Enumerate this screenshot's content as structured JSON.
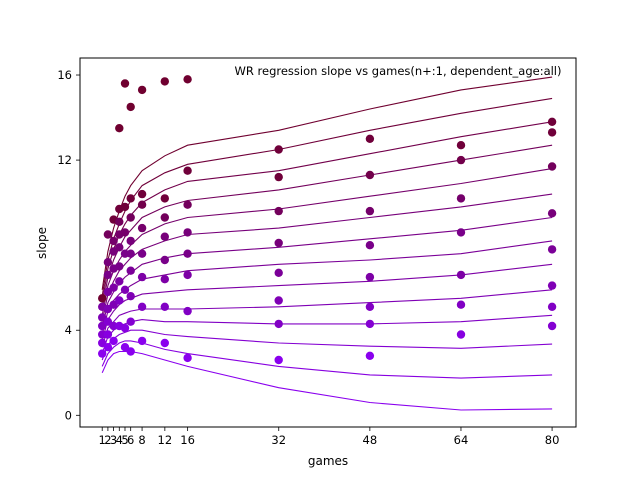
{
  "chart_data": {
    "type": "line",
    "title": "WR regression slope vs games(n+:1, dependent_age:all)",
    "xlabel": "games",
    "ylabel": "slope",
    "xlim": [
      -2.9,
      84.2
    ],
    "ylim": [
      -0.55,
      16.8
    ],
    "xticks": [
      1,
      2,
      3,
      4,
      5,
      6,
      8,
      12,
      16,
      32,
      48,
      64,
      80
    ],
    "yticks": [
      0,
      4,
      12,
      16
    ],
    "grid": false,
    "legend": "none",
    "x": [
      1,
      2,
      3,
      4,
      5,
      6,
      8,
      12,
      16,
      32,
      48,
      64,
      80
    ],
    "colors": [
      "#8a00ee",
      "#8700e0",
      "#8400d2",
      "#8100c4",
      "#7f00b5",
      "#7d00a6",
      "#7b0098",
      "#790089",
      "#77007a",
      "#75006b",
      "#73005c",
      "#72004b",
      "#70003a",
      "#700030"
    ],
    "series": [
      {
        "values": [
          2.0,
          2.6,
          2.9,
          3.0,
          3.0,
          3.0,
          2.9,
          2.6,
          2.3,
          1.3,
          0.6,
          0.25,
          0.3
        ]
      },
      {
        "values": [
          2.3,
          2.9,
          3.2,
          3.4,
          3.5,
          3.5,
          3.4,
          3.1,
          2.9,
          2.3,
          1.9,
          1.75,
          1.9
        ]
      },
      {
        "values": [
          2.6,
          3.3,
          3.6,
          3.8,
          3.9,
          4.0,
          4.0,
          3.8,
          3.7,
          3.4,
          3.25,
          3.15,
          3.35
        ]
      },
      {
        "values": [
          2.9,
          3.7,
          4.0,
          4.2,
          4.3,
          4.4,
          4.5,
          4.4,
          4.4,
          4.3,
          4.3,
          4.4,
          4.7
        ]
      },
      {
        "values": [
          3.2,
          4.1,
          4.4,
          4.7,
          4.8,
          4.9,
          5.0,
          5.0,
          5.0,
          5.1,
          5.3,
          5.5,
          5.9
        ]
      },
      {
        "values": [
          3.5,
          4.5,
          4.9,
          5.2,
          5.4,
          5.5,
          5.7,
          5.8,
          5.9,
          6.1,
          6.3,
          6.6,
          7.1
        ]
      },
      {
        "values": [
          3.8,
          4.9,
          5.4,
          5.7,
          5.9,
          6.1,
          6.4,
          6.6,
          6.8,
          7.1,
          7.3,
          7.6,
          8.2
        ]
      },
      {
        "values": [
          4.1,
          5.3,
          5.8,
          6.2,
          6.5,
          6.7,
          7.1,
          7.4,
          7.6,
          7.9,
          8.3,
          8.7,
          9.3
        ]
      },
      {
        "values": [
          4.4,
          5.7,
          6.3,
          6.8,
          7.1,
          7.4,
          7.8,
          8.2,
          8.5,
          8.8,
          9.3,
          9.8,
          10.4
        ]
      },
      {
        "values": [
          4.7,
          6.1,
          6.8,
          7.3,
          7.7,
          8.0,
          8.5,
          9.0,
          9.3,
          9.7,
          10.3,
          10.9,
          11.6
        ]
      },
      {
        "values": [
          5.0,
          6.5,
          7.3,
          7.9,
          8.4,
          8.7,
          9.3,
          9.8,
          10.1,
          10.6,
          11.3,
          12.0,
          12.7
        ]
      },
      {
        "values": [
          5.3,
          6.9,
          7.8,
          8.5,
          9.0,
          9.4,
          10.0,
          10.6,
          11.0,
          11.5,
          12.3,
          13.1,
          13.8
        ]
      },
      {
        "values": [
          5.6,
          7.3,
          8.3,
          9.0,
          9.6,
          10.1,
          10.8,
          11.4,
          11.8,
          12.5,
          13.4,
          14.2,
          14.9
        ]
      },
      {
        "values": [
          5.9,
          7.7,
          8.8,
          9.6,
          10.3,
          10.8,
          11.5,
          12.2,
          12.7,
          13.4,
          14.4,
          15.3,
          15.9
        ]
      }
    ],
    "points": [
      {
        "x": 1,
        "y": 2.9,
        "c": 0
      },
      {
        "x": 1,
        "y": 3.4,
        "c": 1
      },
      {
        "x": 1,
        "y": 3.8,
        "c": 2
      },
      {
        "x": 1,
        "y": 4.2,
        "c": 3
      },
      {
        "x": 1,
        "y": 4.6,
        "c": 4
      },
      {
        "x": 1,
        "y": 5.1,
        "c": 5
      },
      {
        "x": 1,
        "y": 5.5,
        "c": 13
      },
      {
        "x": 2,
        "y": 3.2,
        "c": 0
      },
      {
        "x": 2,
        "y": 3.8,
        "c": 1
      },
      {
        "x": 2,
        "y": 4.4,
        "c": 2
      },
      {
        "x": 2,
        "y": 5.0,
        "c": 4
      },
      {
        "x": 2,
        "y": 5.8,
        "c": 5
      },
      {
        "x": 2,
        "y": 6.6,
        "c": 7
      },
      {
        "x": 2,
        "y": 7.2,
        "c": 8
      },
      {
        "x": 2,
        "y": 8.5,
        "c": 10
      },
      {
        "x": 3,
        "y": 3.5,
        "c": 0
      },
      {
        "x": 3,
        "y": 4.2,
        "c": 2
      },
      {
        "x": 3,
        "y": 5.2,
        "c": 4
      },
      {
        "x": 3,
        "y": 6.0,
        "c": 5
      },
      {
        "x": 3,
        "y": 6.9,
        "c": 7
      },
      {
        "x": 3,
        "y": 7.7,
        "c": 8
      },
      {
        "x": 3,
        "y": 8.2,
        "c": 9
      },
      {
        "x": 3,
        "y": 9.2,
        "c": 12
      },
      {
        "x": 4,
        "y": 4.2,
        "c": 1
      },
      {
        "x": 4,
        "y": 5.4,
        "c": 3
      },
      {
        "x": 4,
        "y": 6.3,
        "c": 5
      },
      {
        "x": 4,
        "y": 7.0,
        "c": 7
      },
      {
        "x": 4,
        "y": 7.9,
        "c": 8
      },
      {
        "x": 4,
        "y": 8.5,
        "c": 9
      },
      {
        "x": 4,
        "y": 9.1,
        "c": 10
      },
      {
        "x": 4,
        "y": 9.7,
        "c": 12
      },
      {
        "x": 4,
        "y": 13.5,
        "c": 13
      },
      {
        "x": 5,
        "y": 3.2,
        "c": 0
      },
      {
        "x": 5,
        "y": 4.1,
        "c": 1
      },
      {
        "x": 5,
        "y": 5.9,
        "c": 4
      },
      {
        "x": 5,
        "y": 7.6,
        "c": 7
      },
      {
        "x": 5,
        "y": 8.6,
        "c": 9
      },
      {
        "x": 5,
        "y": 9.8,
        "c": 12
      },
      {
        "x": 5,
        "y": 15.6,
        "c": 13
      },
      {
        "x": 6,
        "y": 3.0,
        "c": 0
      },
      {
        "x": 6,
        "y": 4.4,
        "c": 2
      },
      {
        "x": 6,
        "y": 5.6,
        "c": 4
      },
      {
        "x": 6,
        "y": 6.8,
        "c": 6
      },
      {
        "x": 6,
        "y": 7.6,
        "c": 7
      },
      {
        "x": 6,
        "y": 8.2,
        "c": 8
      },
      {
        "x": 6,
        "y": 9.3,
        "c": 10
      },
      {
        "x": 6,
        "y": 10.2,
        "c": 12
      },
      {
        "x": 6,
        "y": 14.5,
        "c": 13
      },
      {
        "x": 8,
        "y": 3.5,
        "c": 0
      },
      {
        "x": 8,
        "y": 5.1,
        "c": 3
      },
      {
        "x": 8,
        "y": 6.5,
        "c": 5
      },
      {
        "x": 8,
        "y": 7.6,
        "c": 7
      },
      {
        "x": 8,
        "y": 8.8,
        "c": 9
      },
      {
        "x": 8,
        "y": 9.9,
        "c": 11
      },
      {
        "x": 8,
        "y": 10.4,
        "c": 12
      },
      {
        "x": 8,
        "y": 15.3,
        "c": 13
      },
      {
        "x": 12,
        "y": 3.4,
        "c": 0
      },
      {
        "x": 12,
        "y": 5.1,
        "c": 3
      },
      {
        "x": 12,
        "y": 6.4,
        "c": 5
      },
      {
        "x": 12,
        "y": 7.3,
        "c": 7
      },
      {
        "x": 12,
        "y": 8.4,
        "c": 8
      },
      {
        "x": 12,
        "y": 9.3,
        "c": 10
      },
      {
        "x": 12,
        "y": 10.2,
        "c": 12
      },
      {
        "x": 12,
        "y": 15.7,
        "c": 13
      },
      {
        "x": 16,
        "y": 2.7,
        "c": 0
      },
      {
        "x": 16,
        "y": 4.9,
        "c": 3
      },
      {
        "x": 16,
        "y": 6.6,
        "c": 5
      },
      {
        "x": 16,
        "y": 7.6,
        "c": 7
      },
      {
        "x": 16,
        "y": 8.6,
        "c": 8
      },
      {
        "x": 16,
        "y": 9.9,
        "c": 10
      },
      {
        "x": 16,
        "y": 11.5,
        "c": 12
      },
      {
        "x": 16,
        "y": 15.8,
        "c": 13
      },
      {
        "x": 32,
        "y": 2.6,
        "c": 0
      },
      {
        "x": 32,
        "y": 4.3,
        "c": 3
      },
      {
        "x": 32,
        "y": 5.4,
        "c": 4
      },
      {
        "x": 32,
        "y": 6.7,
        "c": 6
      },
      {
        "x": 32,
        "y": 8.1,
        "c": 8
      },
      {
        "x": 32,
        "y": 9.6,
        "c": 10
      },
      {
        "x": 32,
        "y": 11.2,
        "c": 12
      },
      {
        "x": 32,
        "y": 12.5,
        "c": 12
      },
      {
        "x": 48,
        "y": 2.8,
        "c": 0
      },
      {
        "x": 48,
        "y": 4.3,
        "c": 2
      },
      {
        "x": 48,
        "y": 5.1,
        "c": 3
      },
      {
        "x": 48,
        "y": 6.5,
        "c": 5
      },
      {
        "x": 48,
        "y": 8.0,
        "c": 7
      },
      {
        "x": 48,
        "y": 9.6,
        "c": 9
      },
      {
        "x": 48,
        "y": 11.3,
        "c": 11
      },
      {
        "x": 48,
        "y": 13.0,
        "c": 12
      },
      {
        "x": 64,
        "y": 3.8,
        "c": 1
      },
      {
        "x": 64,
        "y": 5.2,
        "c": 3
      },
      {
        "x": 64,
        "y": 6.6,
        "c": 5
      },
      {
        "x": 64,
        "y": 8.6,
        "c": 7
      },
      {
        "x": 64,
        "y": 10.2,
        "c": 9
      },
      {
        "x": 64,
        "y": 12.0,
        "c": 11
      },
      {
        "x": 64,
        "y": 12.7,
        "c": 12
      },
      {
        "x": 80,
        "y": 4.2,
        "c": 2
      },
      {
        "x": 80,
        "y": 5.1,
        "c": 3
      },
      {
        "x": 80,
        "y": 6.1,
        "c": 4
      },
      {
        "x": 80,
        "y": 7.8,
        "c": 6
      },
      {
        "x": 80,
        "y": 9.5,
        "c": 8
      },
      {
        "x": 80,
        "y": 11.7,
        "c": 10
      },
      {
        "x": 80,
        "y": 13.3,
        "c": 12
      },
      {
        "x": 80,
        "y": 13.8,
        "c": 12
      }
    ]
  }
}
